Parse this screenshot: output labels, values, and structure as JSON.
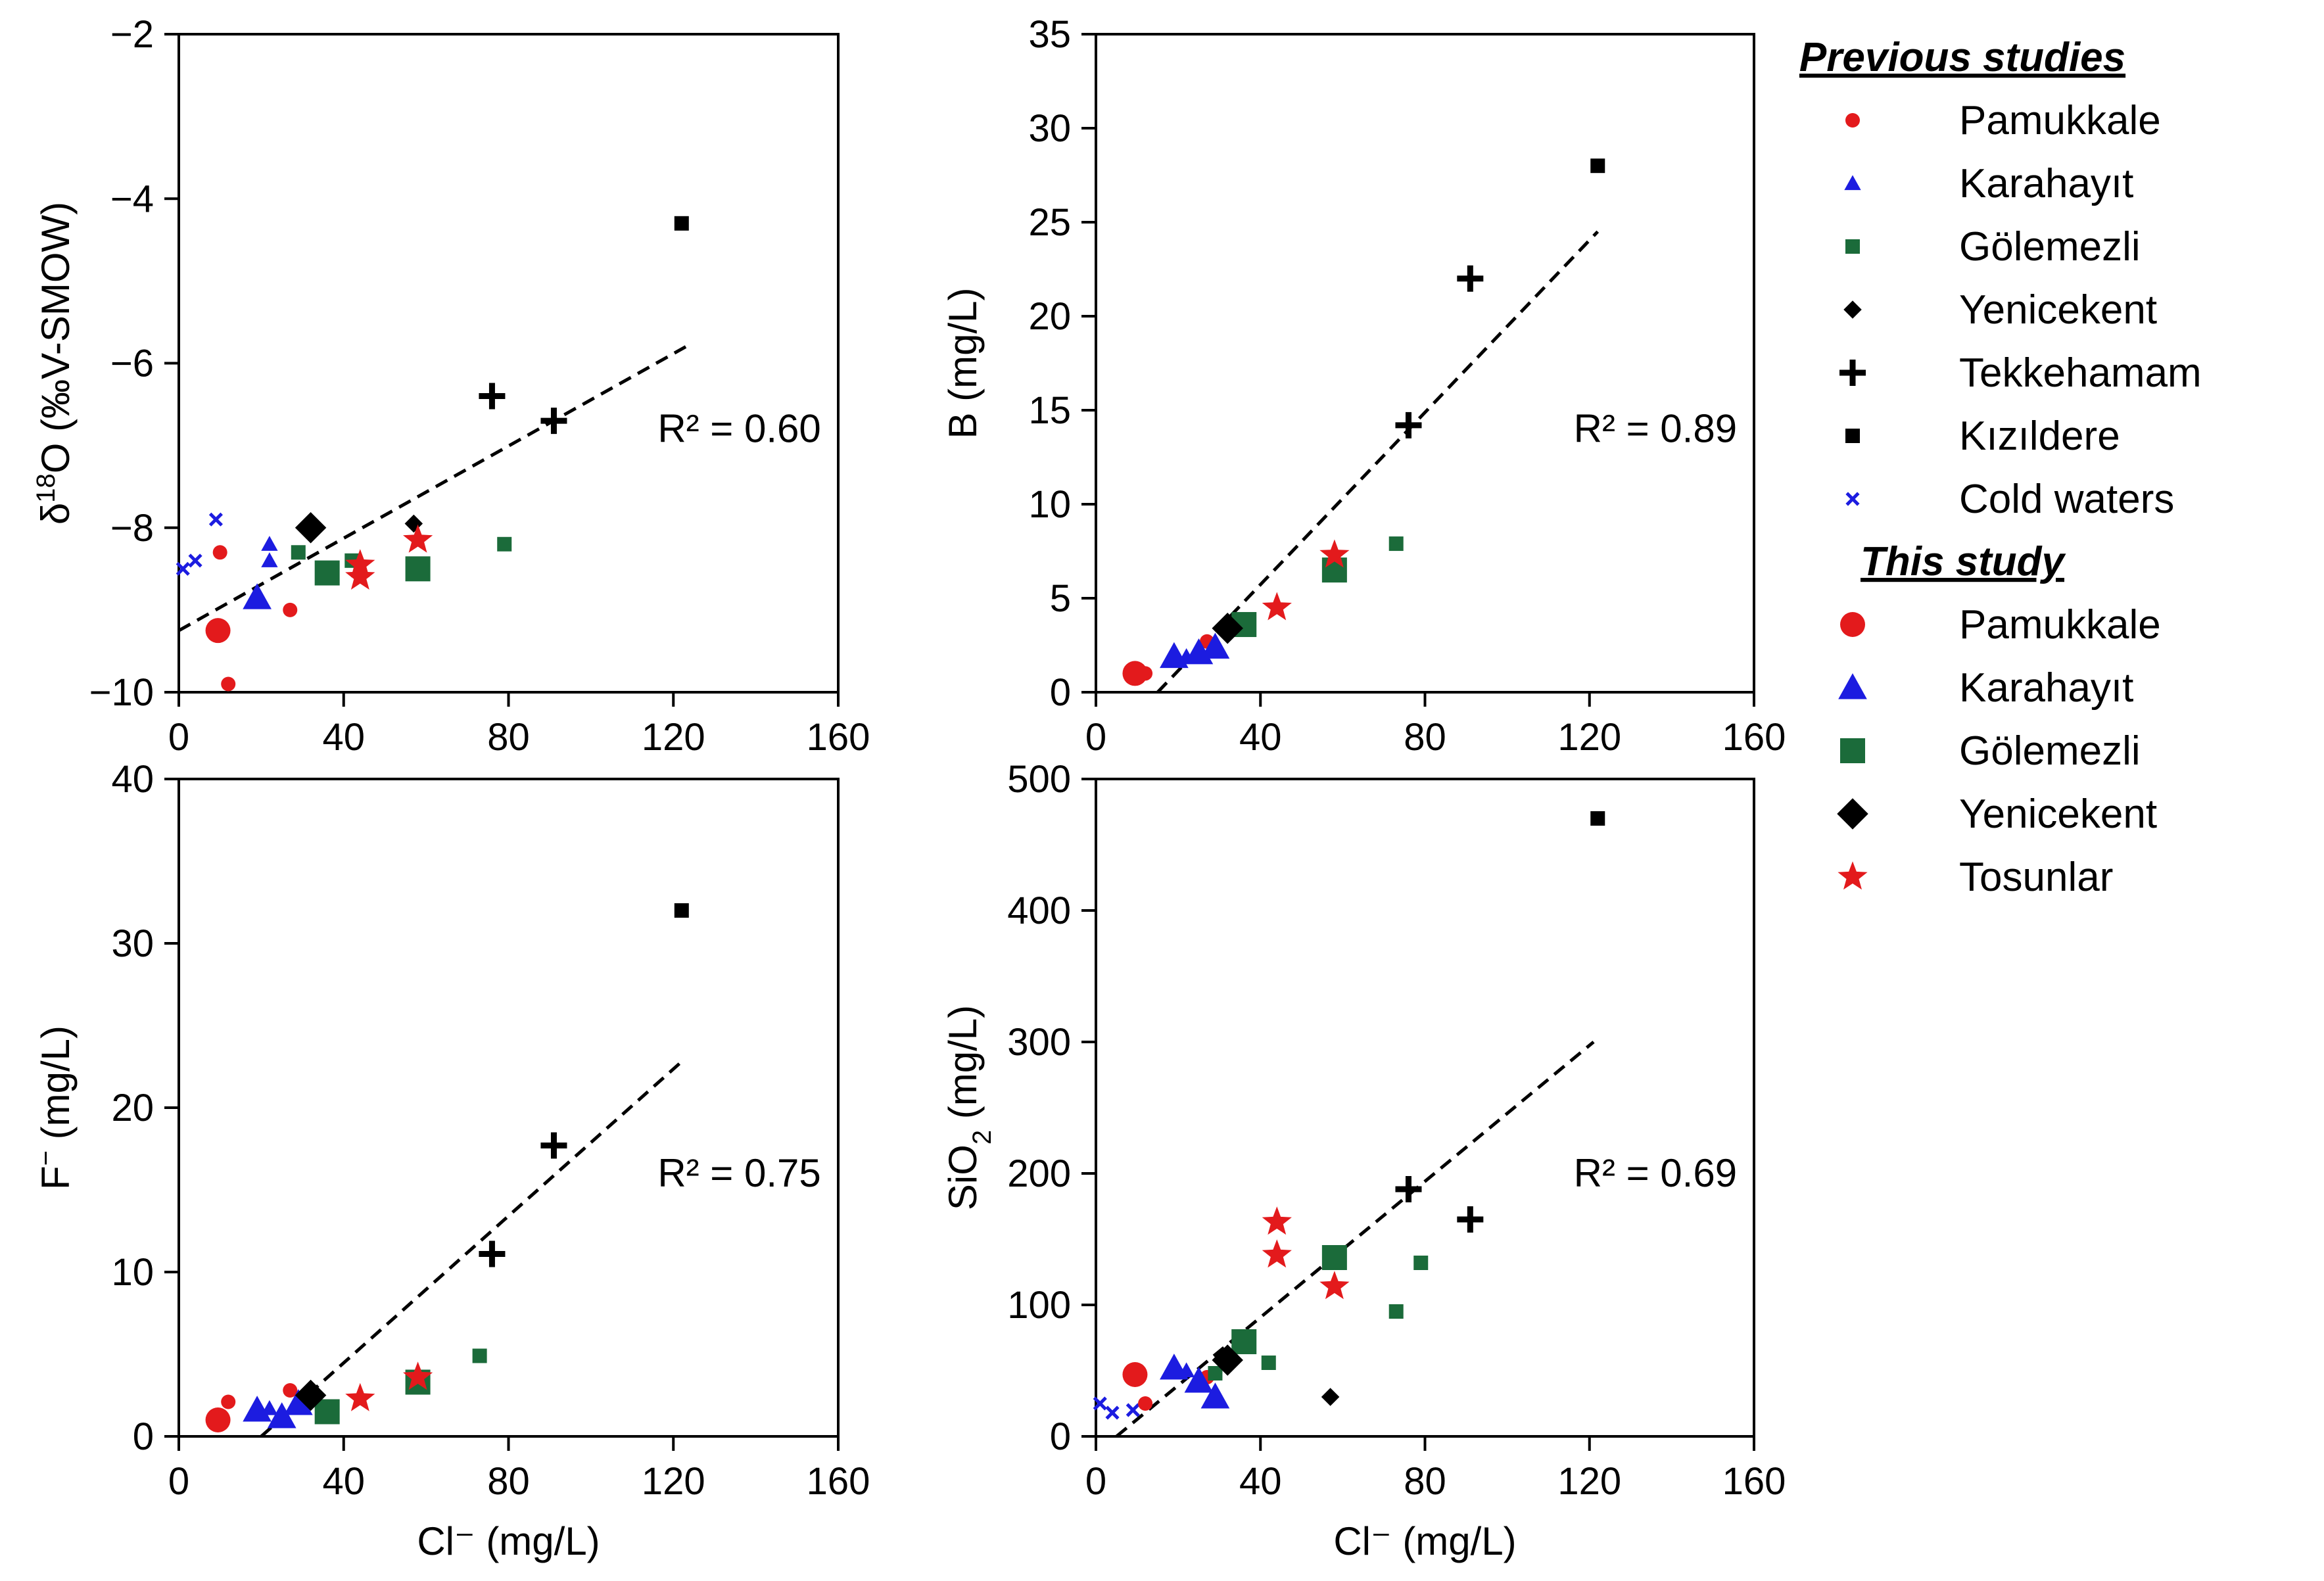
{
  "legend": {
    "previous_heading": "Previous studies",
    "this_heading": "This study",
    "previous": [
      {
        "key": "prev_pam",
        "label": "Pamukkale",
        "marker": "circle",
        "color": "#e31a1c"
      },
      {
        "key": "prev_kar",
        "label": "Karahayıt",
        "marker": "triangle",
        "color": "#1c1ce0"
      },
      {
        "key": "prev_gol",
        "label": "Gölemezli",
        "marker": "square",
        "color": "#1b6b3a"
      },
      {
        "key": "prev_yen",
        "label": "Yenicekent",
        "marker": "diamond",
        "color": "#000000"
      },
      {
        "key": "prev_tek",
        "label": "Tekkehamam",
        "marker": "plus",
        "color": "#000000"
      },
      {
        "key": "prev_kiz",
        "label": "Kızıldere",
        "marker": "square",
        "color": "#000000"
      },
      {
        "key": "prev_cold",
        "label": "Cold waters",
        "marker": "cross",
        "color": "#1c1ce0"
      }
    ],
    "current": [
      {
        "key": "this_pam",
        "label": "Pamukkale",
        "marker": "circle",
        "color": "#e31a1c"
      },
      {
        "key": "this_kar",
        "label": "Karahayıt",
        "marker": "triangle",
        "color": "#1c1ce0"
      },
      {
        "key": "this_gol",
        "label": "Gölemezli",
        "marker": "square",
        "color": "#1b6b3a"
      },
      {
        "key": "this_yen",
        "label": "Yenicekent",
        "marker": "diamond",
        "color": "#000000"
      },
      {
        "key": "this_tos",
        "label": "Tosunlar",
        "marker": "star",
        "color": "#e31a1c"
      }
    ]
  },
  "chart_data": [
    {
      "id": "d18o",
      "type": "scatter",
      "ylabel_parts": [
        "δ",
        "18",
        "O (‰V-SMOW)"
      ],
      "xlabel": "Cl⁻ (mg/L)",
      "show_xlabel": false,
      "xlim": [
        0,
        160
      ],
      "ylim": [
        -10,
        -2
      ],
      "xticks": [
        0,
        40,
        80,
        120,
        160
      ],
      "yticks": [
        -10,
        -8,
        -6,
        -4,
        -2
      ],
      "ytick_labels": [
        "−10",
        "−8",
        "−6",
        "−4",
        "−2"
      ],
      "r2": "R² = 0.60",
      "fit": {
        "x0": 0,
        "y0": -9.25,
        "x1": 123,
        "y1": -5.8
      },
      "points": [
        {
          "s": "prev_cold",
          "x": 1,
          "y": -8.5
        },
        {
          "s": "prev_cold",
          "x": 4,
          "y": -8.4
        },
        {
          "s": "prev_cold",
          "x": 9,
          "y": -7.9
        },
        {
          "s": "prev_pam",
          "x": 10,
          "y": -8.3
        },
        {
          "s": "prev_pam",
          "x": 12,
          "y": -9.9
        },
        {
          "s": "prev_pam",
          "x": 27,
          "y": -9.0
        },
        {
          "s": "prev_kar",
          "x": 19,
          "y": -8.8
        },
        {
          "s": "prev_kar",
          "x": 22,
          "y": -8.2
        },
        {
          "s": "prev_kar",
          "x": 22,
          "y": -8.4
        },
        {
          "s": "prev_gol",
          "x": 29,
          "y": -8.3
        },
        {
          "s": "prev_gol",
          "x": 42,
          "y": -8.4
        },
        {
          "s": "prev_gol",
          "x": 79,
          "y": -8.2
        },
        {
          "s": "prev_yen",
          "x": 57,
          "y": -7.95
        },
        {
          "s": "prev_tek",
          "x": 76,
          "y": -6.4
        },
        {
          "s": "prev_tek",
          "x": 91,
          "y": -6.7
        },
        {
          "s": "prev_kiz",
          "x": 122,
          "y": -4.3
        },
        {
          "s": "this_pam",
          "x": 9.5,
          "y": -9.25
        },
        {
          "s": "this_kar",
          "x": 19,
          "y": -8.85
        },
        {
          "s": "this_gol",
          "x": 36,
          "y": -8.55
        },
        {
          "s": "this_gol",
          "x": 58,
          "y": -8.5
        },
        {
          "s": "this_yen",
          "x": 32,
          "y": -8.0
        },
        {
          "s": "this_tos",
          "x": 44,
          "y": -8.45
        },
        {
          "s": "this_tos",
          "x": 44,
          "y": -8.6
        },
        {
          "s": "this_tos",
          "x": 58,
          "y": -8.15
        }
      ]
    },
    {
      "id": "boron",
      "type": "scatter",
      "ylabel_parts": [
        "B (mg/L)"
      ],
      "xlabel": "Cl⁻ (mg/L)",
      "show_xlabel": false,
      "xlim": [
        0,
        160
      ],
      "ylim": [
        0,
        35
      ],
      "xticks": [
        0,
        40,
        80,
        120,
        160
      ],
      "yticks": [
        0,
        5,
        10,
        15,
        20,
        25,
        30,
        35
      ],
      "ytick_labels": [
        "0",
        "5",
        "10",
        "15",
        "20",
        "25",
        "30",
        "35"
      ],
      "r2": "R² = 0.89",
      "fit": {
        "x0": 15,
        "y0": 0,
        "x1": 122,
        "y1": 24.5
      },
      "points": [
        {
          "s": "prev_pam",
          "x": 12,
          "y": 1.0
        },
        {
          "s": "prev_pam",
          "x": 27,
          "y": 2.7
        },
        {
          "s": "prev_kar",
          "x": 22,
          "y": 1.9
        },
        {
          "s": "prev_kar",
          "x": 25,
          "y": 2.1
        },
        {
          "s": "prev_gol",
          "x": 73,
          "y": 7.9
        },
        {
          "s": "prev_tek",
          "x": 76,
          "y": 14.2
        },
        {
          "s": "prev_tek",
          "x": 91,
          "y": 22.0
        },
        {
          "s": "prev_kiz",
          "x": 122,
          "y": 28.0
        },
        {
          "s": "this_pam",
          "x": 9.5,
          "y": 1.0
        },
        {
          "s": "this_kar",
          "x": 19,
          "y": 1.9
        },
        {
          "s": "this_kar",
          "x": 25,
          "y": 2.1
        },
        {
          "s": "this_kar",
          "x": 29,
          "y": 2.4
        },
        {
          "s": "this_gol",
          "x": 36,
          "y": 3.6
        },
        {
          "s": "this_gol",
          "x": 58,
          "y": 6.5
        },
        {
          "s": "this_yen",
          "x": 32,
          "y": 3.4
        },
        {
          "s": "this_tos",
          "x": 44,
          "y": 4.5
        },
        {
          "s": "this_tos",
          "x": 58,
          "y": 7.3
        }
      ]
    },
    {
      "id": "fluoride",
      "type": "scatter",
      "ylabel_parts": [
        "F",
        "−",
        " (mg/L)"
      ],
      "xlabel": "Cl⁻ (mg/L)",
      "show_xlabel": true,
      "xlim": [
        0,
        160
      ],
      "ylim": [
        0,
        40
      ],
      "xticks": [
        0,
        40,
        80,
        120,
        160
      ],
      "yticks": [
        0,
        10,
        20,
        30,
        40
      ],
      "ytick_labels": [
        "0",
        "10",
        "20",
        "30",
        "40"
      ],
      "r2": "R² = 0.75",
      "fit": {
        "x0": 20,
        "y0": 0,
        "x1": 122,
        "y1": 22.8
      },
      "points": [
        {
          "s": "prev_pam",
          "x": 12,
          "y": 2.1
        },
        {
          "s": "prev_pam",
          "x": 27,
          "y": 2.8
        },
        {
          "s": "prev_kar",
          "x": 22,
          "y": 1.7
        },
        {
          "s": "prev_gol",
          "x": 73,
          "y": 4.9
        },
        {
          "s": "prev_tek",
          "x": 76,
          "y": 11.1
        },
        {
          "s": "prev_tek",
          "x": 91,
          "y": 17.7
        },
        {
          "s": "prev_kiz",
          "x": 122,
          "y": 32.0
        },
        {
          "s": "this_pam",
          "x": 9.5,
          "y": 1.0
        },
        {
          "s": "this_kar",
          "x": 19,
          "y": 1.6
        },
        {
          "s": "this_kar",
          "x": 25,
          "y": 1.2
        },
        {
          "s": "this_kar",
          "x": 29,
          "y": 2.0
        },
        {
          "s": "this_gol",
          "x": 36,
          "y": 1.5
        },
        {
          "s": "this_gol",
          "x": 58,
          "y": 3.3
        },
        {
          "s": "this_yen",
          "x": 32,
          "y": 2.5
        },
        {
          "s": "this_tos",
          "x": 44,
          "y": 2.3
        },
        {
          "s": "this_tos",
          "x": 58,
          "y": 3.6
        }
      ]
    },
    {
      "id": "silica",
      "type": "scatter",
      "ylabel_parts": [
        "SiO",
        "2",
        " (mg/L)"
      ],
      "xlabel": "Cl⁻ (mg/L)",
      "show_xlabel": true,
      "xlim": [
        0,
        160
      ],
      "ylim": [
        0,
        500
      ],
      "xticks": [
        0,
        40,
        80,
        120,
        160
      ],
      "yticks": [
        0,
        100,
        200,
        300,
        400,
        500
      ],
      "ytick_labels": [
        "0",
        "100",
        "200",
        "300",
        "400",
        "500"
      ],
      "r2": "R² = 0.69",
      "fit": {
        "x0": 5,
        "y0": 0,
        "x1": 121,
        "y1": 300
      },
      "points": [
        {
          "s": "prev_cold",
          "x": 1,
          "y": 25
        },
        {
          "s": "prev_cold",
          "x": 4,
          "y": 18
        },
        {
          "s": "prev_cold",
          "x": 9,
          "y": 20
        },
        {
          "s": "prev_pam",
          "x": 12,
          "y": 25
        },
        {
          "s": "prev_pam",
          "x": 27,
          "y": 45
        },
        {
          "s": "prev_kar",
          "x": 22,
          "y": 50
        },
        {
          "s": "prev_gol",
          "x": 29,
          "y": 48
        },
        {
          "s": "prev_gol",
          "x": 42,
          "y": 56
        },
        {
          "s": "prev_gol",
          "x": 73,
          "y": 95
        },
        {
          "s": "prev_gol",
          "x": 79,
          "y": 132
        },
        {
          "s": "prev_yen",
          "x": 57,
          "y": 30
        },
        {
          "s": "prev_tek",
          "x": 76,
          "y": 188
        },
        {
          "s": "prev_tek",
          "x": 91,
          "y": 165
        },
        {
          "s": "prev_kiz",
          "x": 122,
          "y": 470
        },
        {
          "s": "this_pam",
          "x": 9.5,
          "y": 47
        },
        {
          "s": "this_kar",
          "x": 19,
          "y": 52
        },
        {
          "s": "this_kar",
          "x": 25,
          "y": 42
        },
        {
          "s": "this_kar",
          "x": 29,
          "y": 30
        },
        {
          "s": "this_gol",
          "x": 36,
          "y": 72
        },
        {
          "s": "this_gol",
          "x": 58,
          "y": 136
        },
        {
          "s": "this_yen",
          "x": 32,
          "y": 58
        },
        {
          "s": "this_tos",
          "x": 44,
          "y": 163
        },
        {
          "s": "this_tos",
          "x": 44,
          "y": 138
        },
        {
          "s": "this_tos",
          "x": 58,
          "y": 114
        }
      ]
    }
  ]
}
